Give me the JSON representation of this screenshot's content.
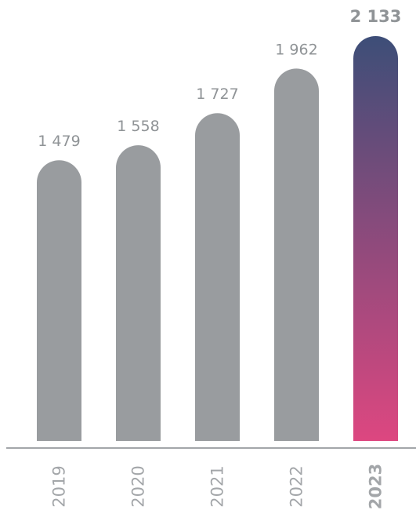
{
  "chart_data": {
    "type": "bar",
    "categories": [
      "2019",
      "2020",
      "2021",
      "2022",
      "2023"
    ],
    "values": [
      1479,
      1558,
      1727,
      1962,
      2133
    ],
    "value_labels": [
      "1 479",
      "1 558",
      "1 727",
      "1 962",
      "2 133"
    ],
    "highlight_index": 4,
    "title": "",
    "xlabel": "",
    "ylabel": "",
    "ylim": [
      0,
      2133
    ],
    "grid": false,
    "legend": "none"
  },
  "colors": {
    "bar": "#999c9f",
    "highlight_top": "#3d4e78",
    "highlight_bottom": "#dd4780",
    "highlight_text": "#3d4e78",
    "value_text": "#8f9396",
    "category_text": "#a3a6a9",
    "baseline": "#a3a6a9"
  }
}
